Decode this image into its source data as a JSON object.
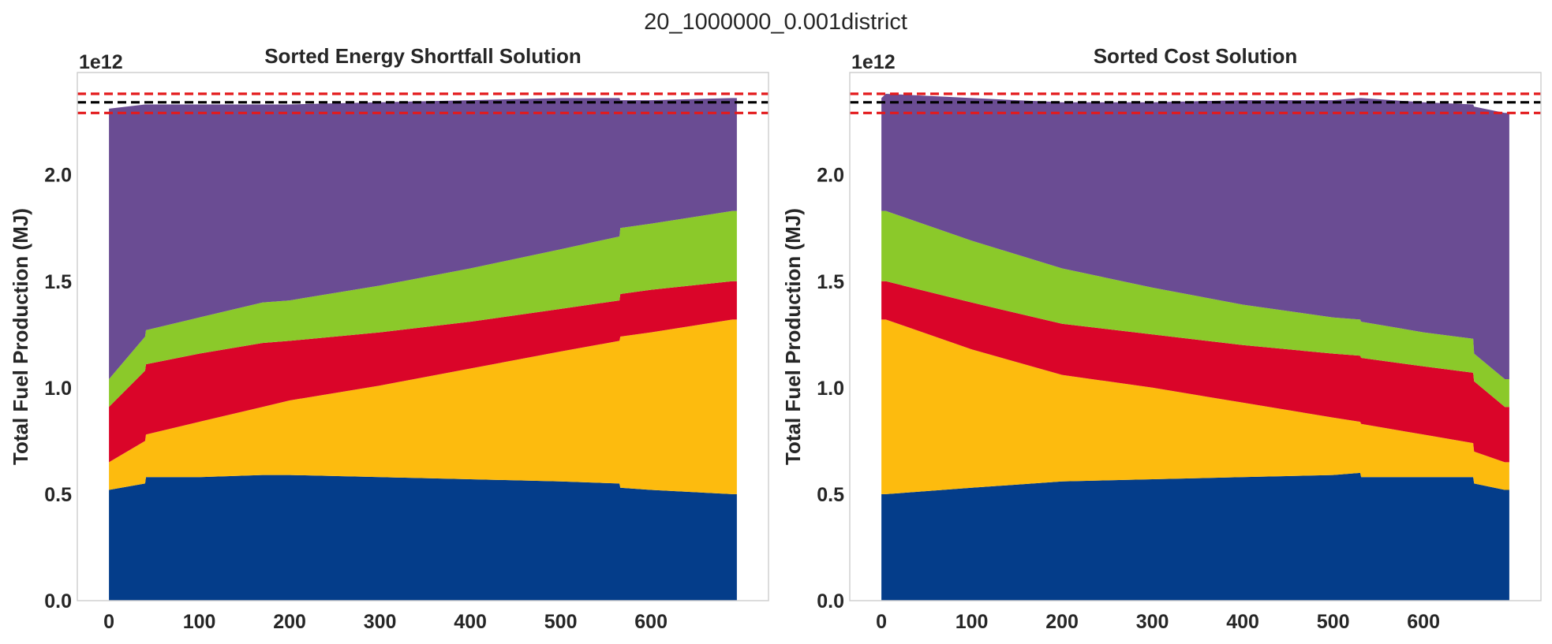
{
  "figure": {
    "suptitle": "20_1000000_0.001district"
  },
  "chart_data": [
    {
      "type": "area",
      "title": "Sorted Energy Shortfall Solution",
      "xlabel": "",
      "ylabel": "Total Fuel Production (MJ)",
      "y_offset_label": "1e12",
      "xlim": [
        -35,
        730
      ],
      "ylim": [
        0,
        2.48
      ],
      "xticks": [
        0,
        100,
        200,
        300,
        400,
        500,
        600
      ],
      "yticks": [
        0.0,
        0.5,
        1.0,
        1.5,
        2.0
      ],
      "y_unit_multiplier": 1000000000000.0,
      "grid": false,
      "x": [
        0,
        40,
        41,
        100,
        170,
        200,
        300,
        400,
        500,
        565,
        566,
        600,
        690,
        695
      ],
      "series": [
        {
          "color": "#043d8a",
          "values": [
            0.52,
            0.55,
            0.58,
            0.58,
            0.59,
            0.59,
            0.58,
            0.57,
            0.56,
            0.55,
            0.53,
            0.52,
            0.5,
            0.5
          ]
        },
        {
          "color": "#fdbb0e",
          "values": [
            0.13,
            0.2,
            0.2,
            0.26,
            0.32,
            0.35,
            0.43,
            0.52,
            0.61,
            0.67,
            0.71,
            0.74,
            0.82,
            0.82
          ]
        },
        {
          "color": "#da0529",
          "values": [
            0.26,
            0.33,
            0.33,
            0.32,
            0.3,
            0.28,
            0.25,
            0.22,
            0.2,
            0.19,
            0.2,
            0.2,
            0.18,
            0.18
          ]
        },
        {
          "color": "#8bc92a",
          "values": [
            0.13,
            0.16,
            0.16,
            0.17,
            0.19,
            0.19,
            0.22,
            0.25,
            0.28,
            0.3,
            0.31,
            0.31,
            0.33,
            0.33
          ]
        },
        {
          "color": "#6a4c93",
          "values": [
            1.27,
            1.09,
            1.06,
            1.0,
            0.93,
            0.92,
            0.86,
            0.79,
            0.71,
            0.65,
            0.6,
            0.58,
            0.53,
            0.53
          ]
        }
      ],
      "hlines": [
        {
          "y": 2.38,
          "color": "#e31a1c",
          "style": "dashed"
        },
        {
          "y": 2.34,
          "color": "#000000",
          "style": "dashed"
        },
        {
          "y": 2.29,
          "color": "#e31a1c",
          "style": "dashed"
        }
      ]
    },
    {
      "type": "area",
      "title": "Sorted Cost Solution",
      "xlabel": "",
      "ylabel": "Total Fuel Production (MJ)",
      "y_offset_label": "1e12",
      "xlim": [
        -35,
        730
      ],
      "ylim": [
        0,
        2.48
      ],
      "xticks": [
        0,
        100,
        200,
        300,
        400,
        500,
        600
      ],
      "yticks": [
        0.0,
        0.5,
        1.0,
        1.5,
        2.0
      ],
      "y_unit_multiplier": 1000000000000.0,
      "grid": false,
      "x": [
        0,
        5,
        100,
        200,
        300,
        400,
        500,
        530,
        531,
        600,
        655,
        656,
        690,
        695
      ],
      "series": [
        {
          "color": "#043d8a",
          "values": [
            0.5,
            0.5,
            0.53,
            0.56,
            0.57,
            0.58,
            0.59,
            0.6,
            0.58,
            0.58,
            0.58,
            0.55,
            0.52,
            0.52
          ]
        },
        {
          "color": "#fdbb0e",
          "values": [
            0.82,
            0.82,
            0.65,
            0.5,
            0.43,
            0.35,
            0.27,
            0.24,
            0.25,
            0.2,
            0.16,
            0.15,
            0.13,
            0.13
          ]
        },
        {
          "color": "#da0529",
          "values": [
            0.18,
            0.18,
            0.22,
            0.24,
            0.25,
            0.27,
            0.3,
            0.31,
            0.31,
            0.32,
            0.33,
            0.33,
            0.26,
            0.26
          ]
        },
        {
          "color": "#8bc92a",
          "values": [
            0.33,
            0.33,
            0.29,
            0.26,
            0.22,
            0.19,
            0.17,
            0.17,
            0.17,
            0.16,
            0.16,
            0.13,
            0.13,
            0.13
          ]
        },
        {
          "color": "#6a4c93",
          "values": [
            0.53,
            0.55,
            0.67,
            0.78,
            0.87,
            0.96,
            1.02,
            1.04,
            1.05,
            1.08,
            1.1,
            1.16,
            1.25,
            1.25
          ]
        }
      ],
      "hlines": [
        {
          "y": 2.38,
          "color": "#e31a1c",
          "style": "dashed"
        },
        {
          "y": 2.34,
          "color": "#000000",
          "style": "dashed"
        },
        {
          "y": 2.29,
          "color": "#e31a1c",
          "style": "dashed"
        }
      ]
    }
  ]
}
